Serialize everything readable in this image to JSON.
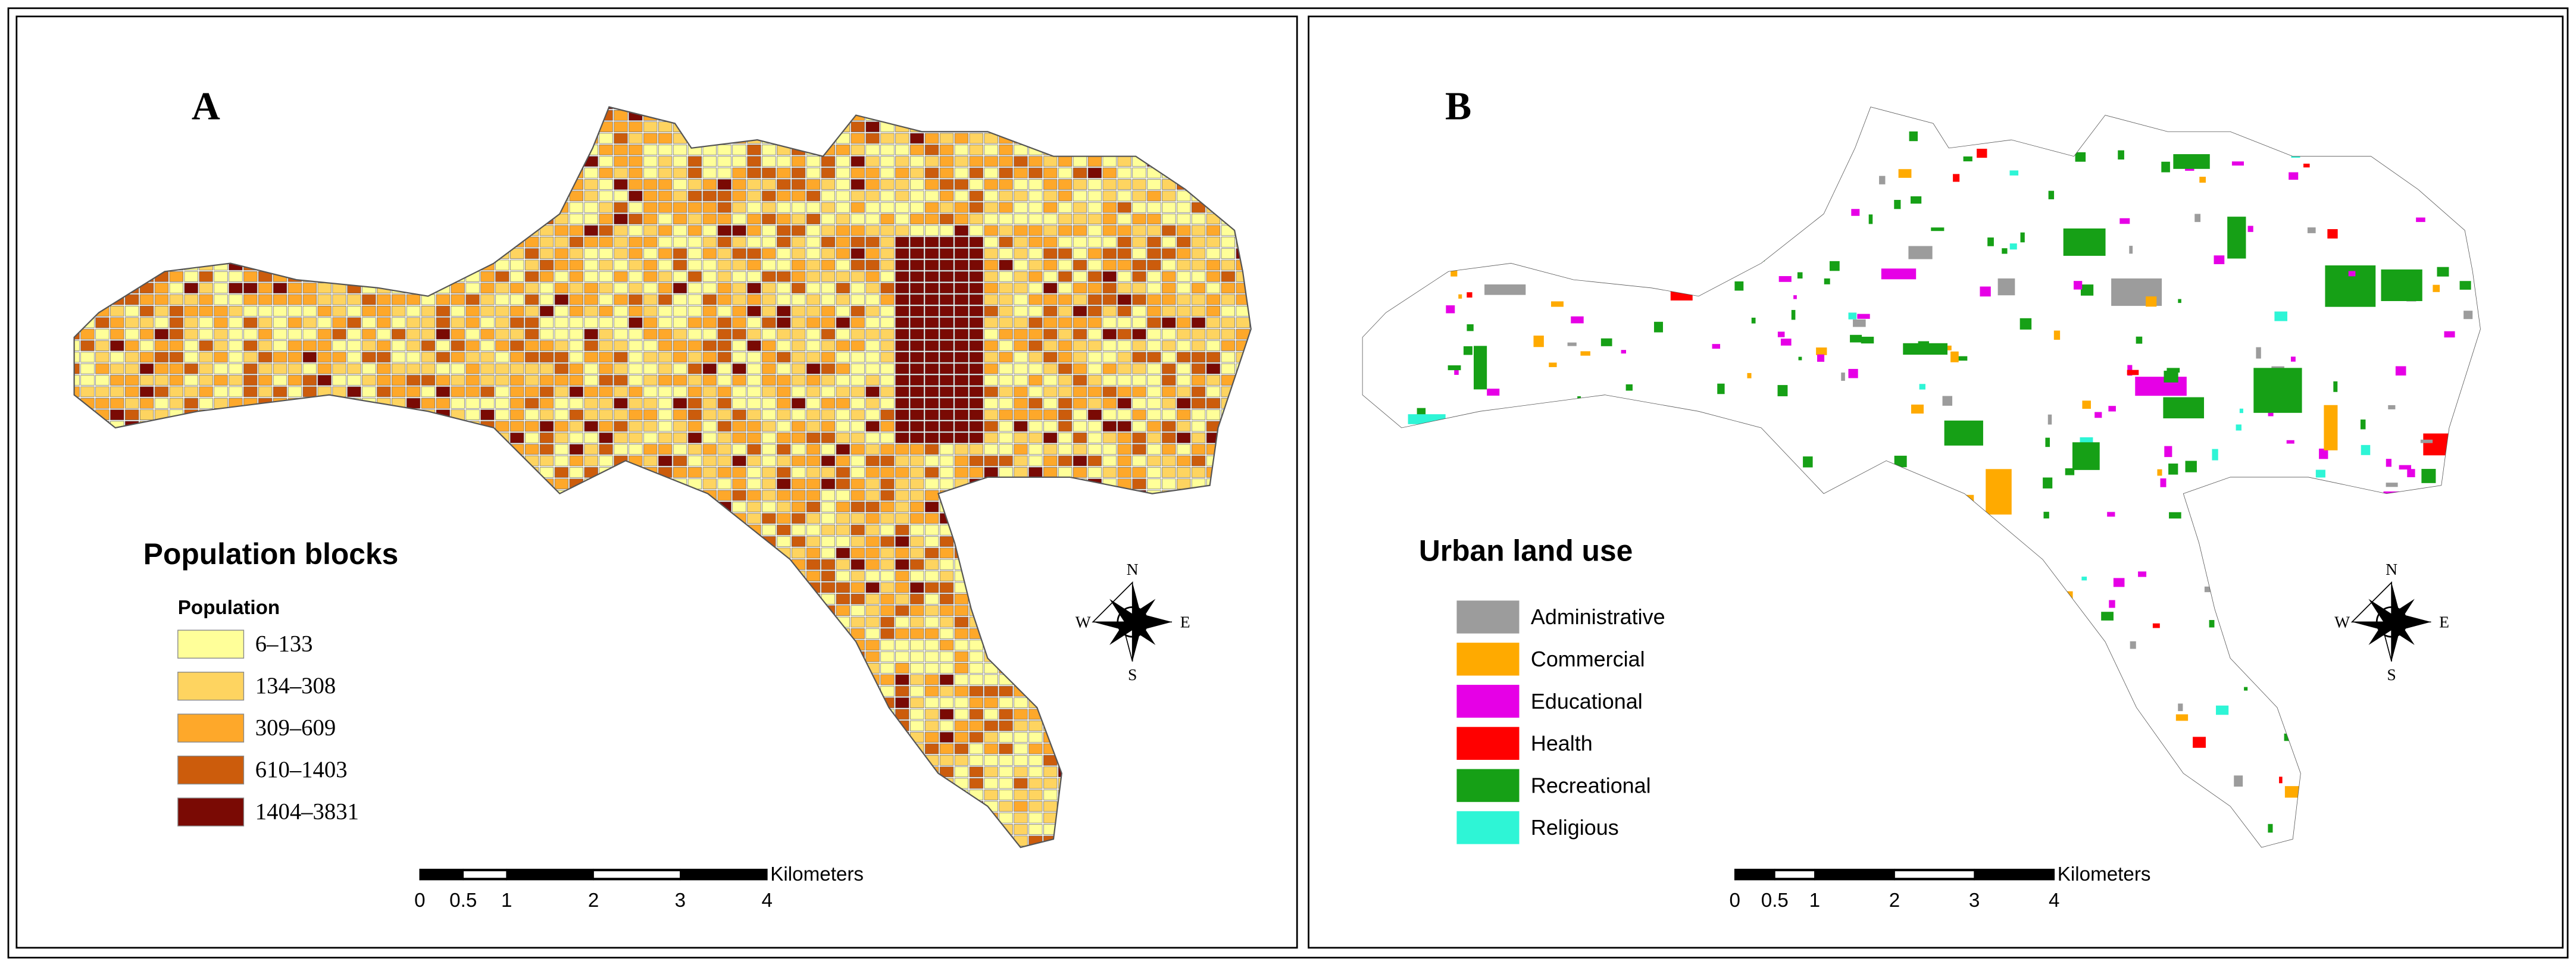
{
  "panels": [
    {
      "label": "A",
      "legend_title": "Population blocks",
      "legend_subtitle": "Population",
      "legend": [
        {
          "label": "6–133",
          "color": "#ffff99"
        },
        {
          "label": "134–308",
          "color": "#fed460"
        },
        {
          "label": "309–609",
          "color": "#fea82a"
        },
        {
          "label": "610–1403",
          "color": "#cc5c0c"
        },
        {
          "label": "1404–3831",
          "color": "#7a0a04"
        }
      ],
      "scale_bar": {
        "ticks": [
          0,
          0.5,
          1,
          2,
          3,
          4
        ],
        "unit": "Kilometers"
      },
      "compass": {
        "n": "N",
        "e": "E",
        "s": "S",
        "w": "W"
      }
    },
    {
      "label": "B",
      "legend_title": "Urban land use",
      "legend": [
        {
          "label": "Administrative",
          "color": "#9c9c9c"
        },
        {
          "label": "Commercial",
          "color": "#ffaa00"
        },
        {
          "label": "Educational",
          "color": "#e600e6"
        },
        {
          "label": "Health",
          "color": "#ff0000"
        },
        {
          "label": "Recreational",
          "color": "#16a016"
        },
        {
          "label": "Religious",
          "color": "#2ef5d6"
        }
      ],
      "scale_bar": {
        "ticks": [
          0,
          0.5,
          1,
          2,
          3,
          4
        ],
        "unit": "Kilometers"
      },
      "compass": {
        "n": "N",
        "e": "E",
        "s": "S",
        "w": "W"
      }
    }
  ]
}
